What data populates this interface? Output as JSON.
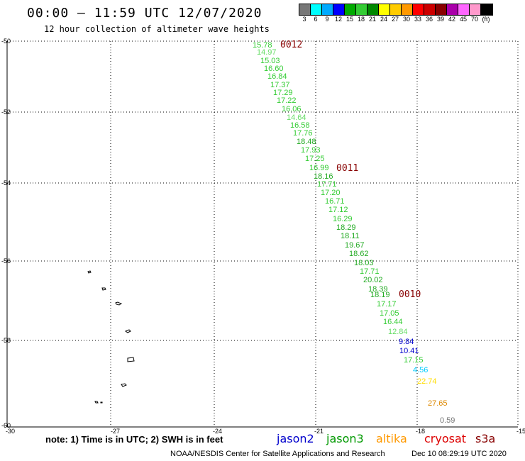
{
  "header": {
    "title": "00:00 – 11:59 UTC 12/07/2020",
    "subtitle": "12 hour collection of altimeter wave heights"
  },
  "legend": {
    "colors": [
      "#777777",
      "#00ffff",
      "#00aaff",
      "#0000ff",
      "#00aa00",
      "#33cc33",
      "#008800",
      "#ffff00",
      "#ffcc00",
      "#ff9900",
      "#ff0000",
      "#cc0000",
      "#880000",
      "#aa00aa",
      "#ff66ff",
      "#ff99cc",
      "#000000"
    ],
    "labels": [
      "3",
      "6",
      "9",
      "12",
      "15",
      "18",
      "21",
      "24",
      "27",
      "30",
      "33",
      "36",
      "39",
      "42",
      "45",
      "70",
      "(ft)"
    ]
  },
  "axes": {
    "y_labels": [
      "-50",
      "-52",
      "-54",
      "-56",
      "-58",
      "-60"
    ],
    "x_labels": [
      "-30",
      "-27",
      "-24",
      "-21",
      "-18",
      "-15"
    ]
  },
  "tracks": [
    {
      "label": "0012",
      "color": "#880000"
    },
    {
      "label": "0011",
      "color": "#880000"
    },
    {
      "label": "0010",
      "color": "#880000"
    }
  ],
  "observations": [
    {
      "v": "15.78",
      "c": "#33cc33"
    },
    {
      "v": "14.97",
      "c": "#66dd66"
    },
    {
      "v": "15.03",
      "c": "#33cc33"
    },
    {
      "v": "16.60",
      "c": "#33cc33"
    },
    {
      "v": "16.84",
      "c": "#33cc33"
    },
    {
      "v": "17.37",
      "c": "#33cc33"
    },
    {
      "v": "17.29",
      "c": "#33cc33"
    },
    {
      "v": "17.22",
      "c": "#33cc33"
    },
    {
      "v": "16.06",
      "c": "#33cc33"
    },
    {
      "v": "14.64",
      "c": "#66dd66"
    },
    {
      "v": "16.58",
      "c": "#33cc33"
    },
    {
      "v": "17.76",
      "c": "#33cc33"
    },
    {
      "v": "18.48",
      "c": "#22aa22"
    },
    {
      "v": "17.93",
      "c": "#33cc33"
    },
    {
      "v": "17.25",
      "c": "#33cc33"
    },
    {
      "v": "16.99",
      "c": "#33cc33"
    },
    {
      "v": "18.16",
      "c": "#22aa22"
    },
    {
      "v": "17.71",
      "c": "#33cc33"
    },
    {
      "v": "17.20",
      "c": "#33cc33"
    },
    {
      "v": "16.71",
      "c": "#33cc33"
    },
    {
      "v": "17.12",
      "c": "#33cc33"
    },
    {
      "v": "16.29",
      "c": "#33cc33"
    },
    {
      "v": "18.29",
      "c": "#22aa22"
    },
    {
      "v": "18.11",
      "c": "#22aa22"
    },
    {
      "v": "19.67",
      "c": "#22aa22"
    },
    {
      "v": "18.62",
      "c": "#22aa22"
    },
    {
      "v": "18.03",
      "c": "#22aa22"
    },
    {
      "v": "17.71",
      "c": "#33cc33"
    },
    {
      "v": "20.02",
      "c": "#22aa22"
    },
    {
      "v": "18.39",
      "c": "#22aa22"
    },
    {
      "v": "18.19",
      "c": "#22aa22"
    },
    {
      "v": "17.17",
      "c": "#33cc33"
    },
    {
      "v": "17.05",
      "c": "#33cc33"
    },
    {
      "v": "16.44",
      "c": "#33cc33"
    },
    {
      "v": "12.84",
      "c": "#66dd66"
    },
    {
      "v": "9.84",
      "c": "#0000cc"
    },
    {
      "v": "10.41",
      "c": "#0000cc"
    },
    {
      "v": "17.15",
      "c": "#33cc33"
    },
    {
      "v": "4.56",
      "c": "#00ccff"
    },
    {
      "v": "22.74",
      "c": "#ffdd00"
    },
    {
      "v": "27.65",
      "c": "#dd8800"
    },
    {
      "v": "0.59",
      "c": "#777777"
    }
  ],
  "footer": {
    "note": "note: 1) Time is in UTC; 2) SWH is in feet",
    "satellites": [
      {
        "name": "jason2",
        "color": "#0000cc"
      },
      {
        "name": "jason3",
        "color": "#009900"
      },
      {
        "name": "altika",
        "color": "#ff9900"
      },
      {
        "name": "cryosat",
        "color": "#dd0000"
      },
      {
        "name": "s3a",
        "color": "#880000"
      }
    ],
    "credit": "NOAA/NESDIS Center for Satellite Applications and Research",
    "timestamp": "Dec 10 08:29:19 UTC 2020"
  }
}
